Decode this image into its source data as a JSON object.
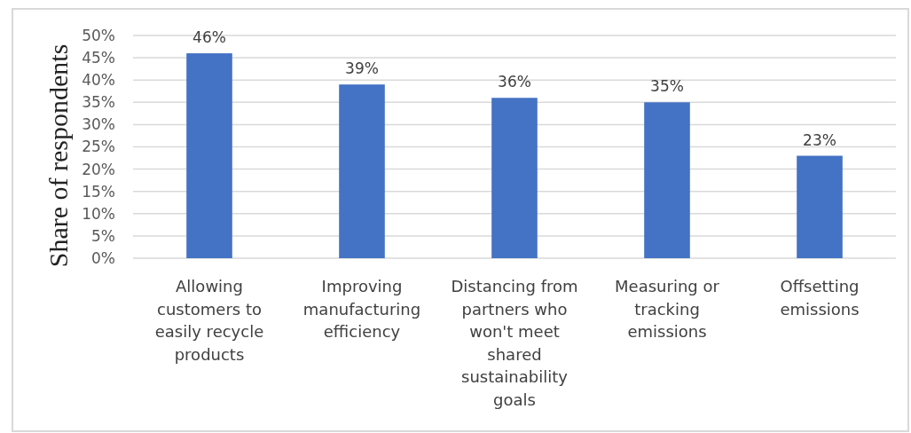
{
  "chart_data": {
    "type": "bar",
    "ylabel": "Share of respondents",
    "categories": [
      "Allowing customers to easily recycle products",
      "Improving manufacturing efficiency",
      "Distancing from partners who won't meet shared sustainability goals",
      "Measuring or tracking emissions",
      "Offsetting emissions"
    ],
    "values": [
      46,
      39,
      36,
      35,
      23
    ],
    "value_labels": [
      "46%",
      "39%",
      "36%",
      "35%",
      "23%"
    ],
    "color": "#4472c4",
    "ylim": [
      0,
      50
    ],
    "yticks": [
      {
        "value": 0,
        "label": "0%"
      },
      {
        "value": 5,
        "label": "5%"
      },
      {
        "value": 10,
        "label": "10%"
      },
      {
        "value": 15,
        "label": "15%"
      },
      {
        "value": 20,
        "label": "20%"
      },
      {
        "value": 25,
        "label": "25%"
      },
      {
        "value": 30,
        "label": "30%"
      },
      {
        "value": 35,
        "label": "35%"
      },
      {
        "value": 40,
        "label": "40%"
      },
      {
        "value": 45,
        "label": "45%"
      },
      {
        "value": 50,
        "label": "50%"
      }
    ],
    "grid": "y"
  }
}
